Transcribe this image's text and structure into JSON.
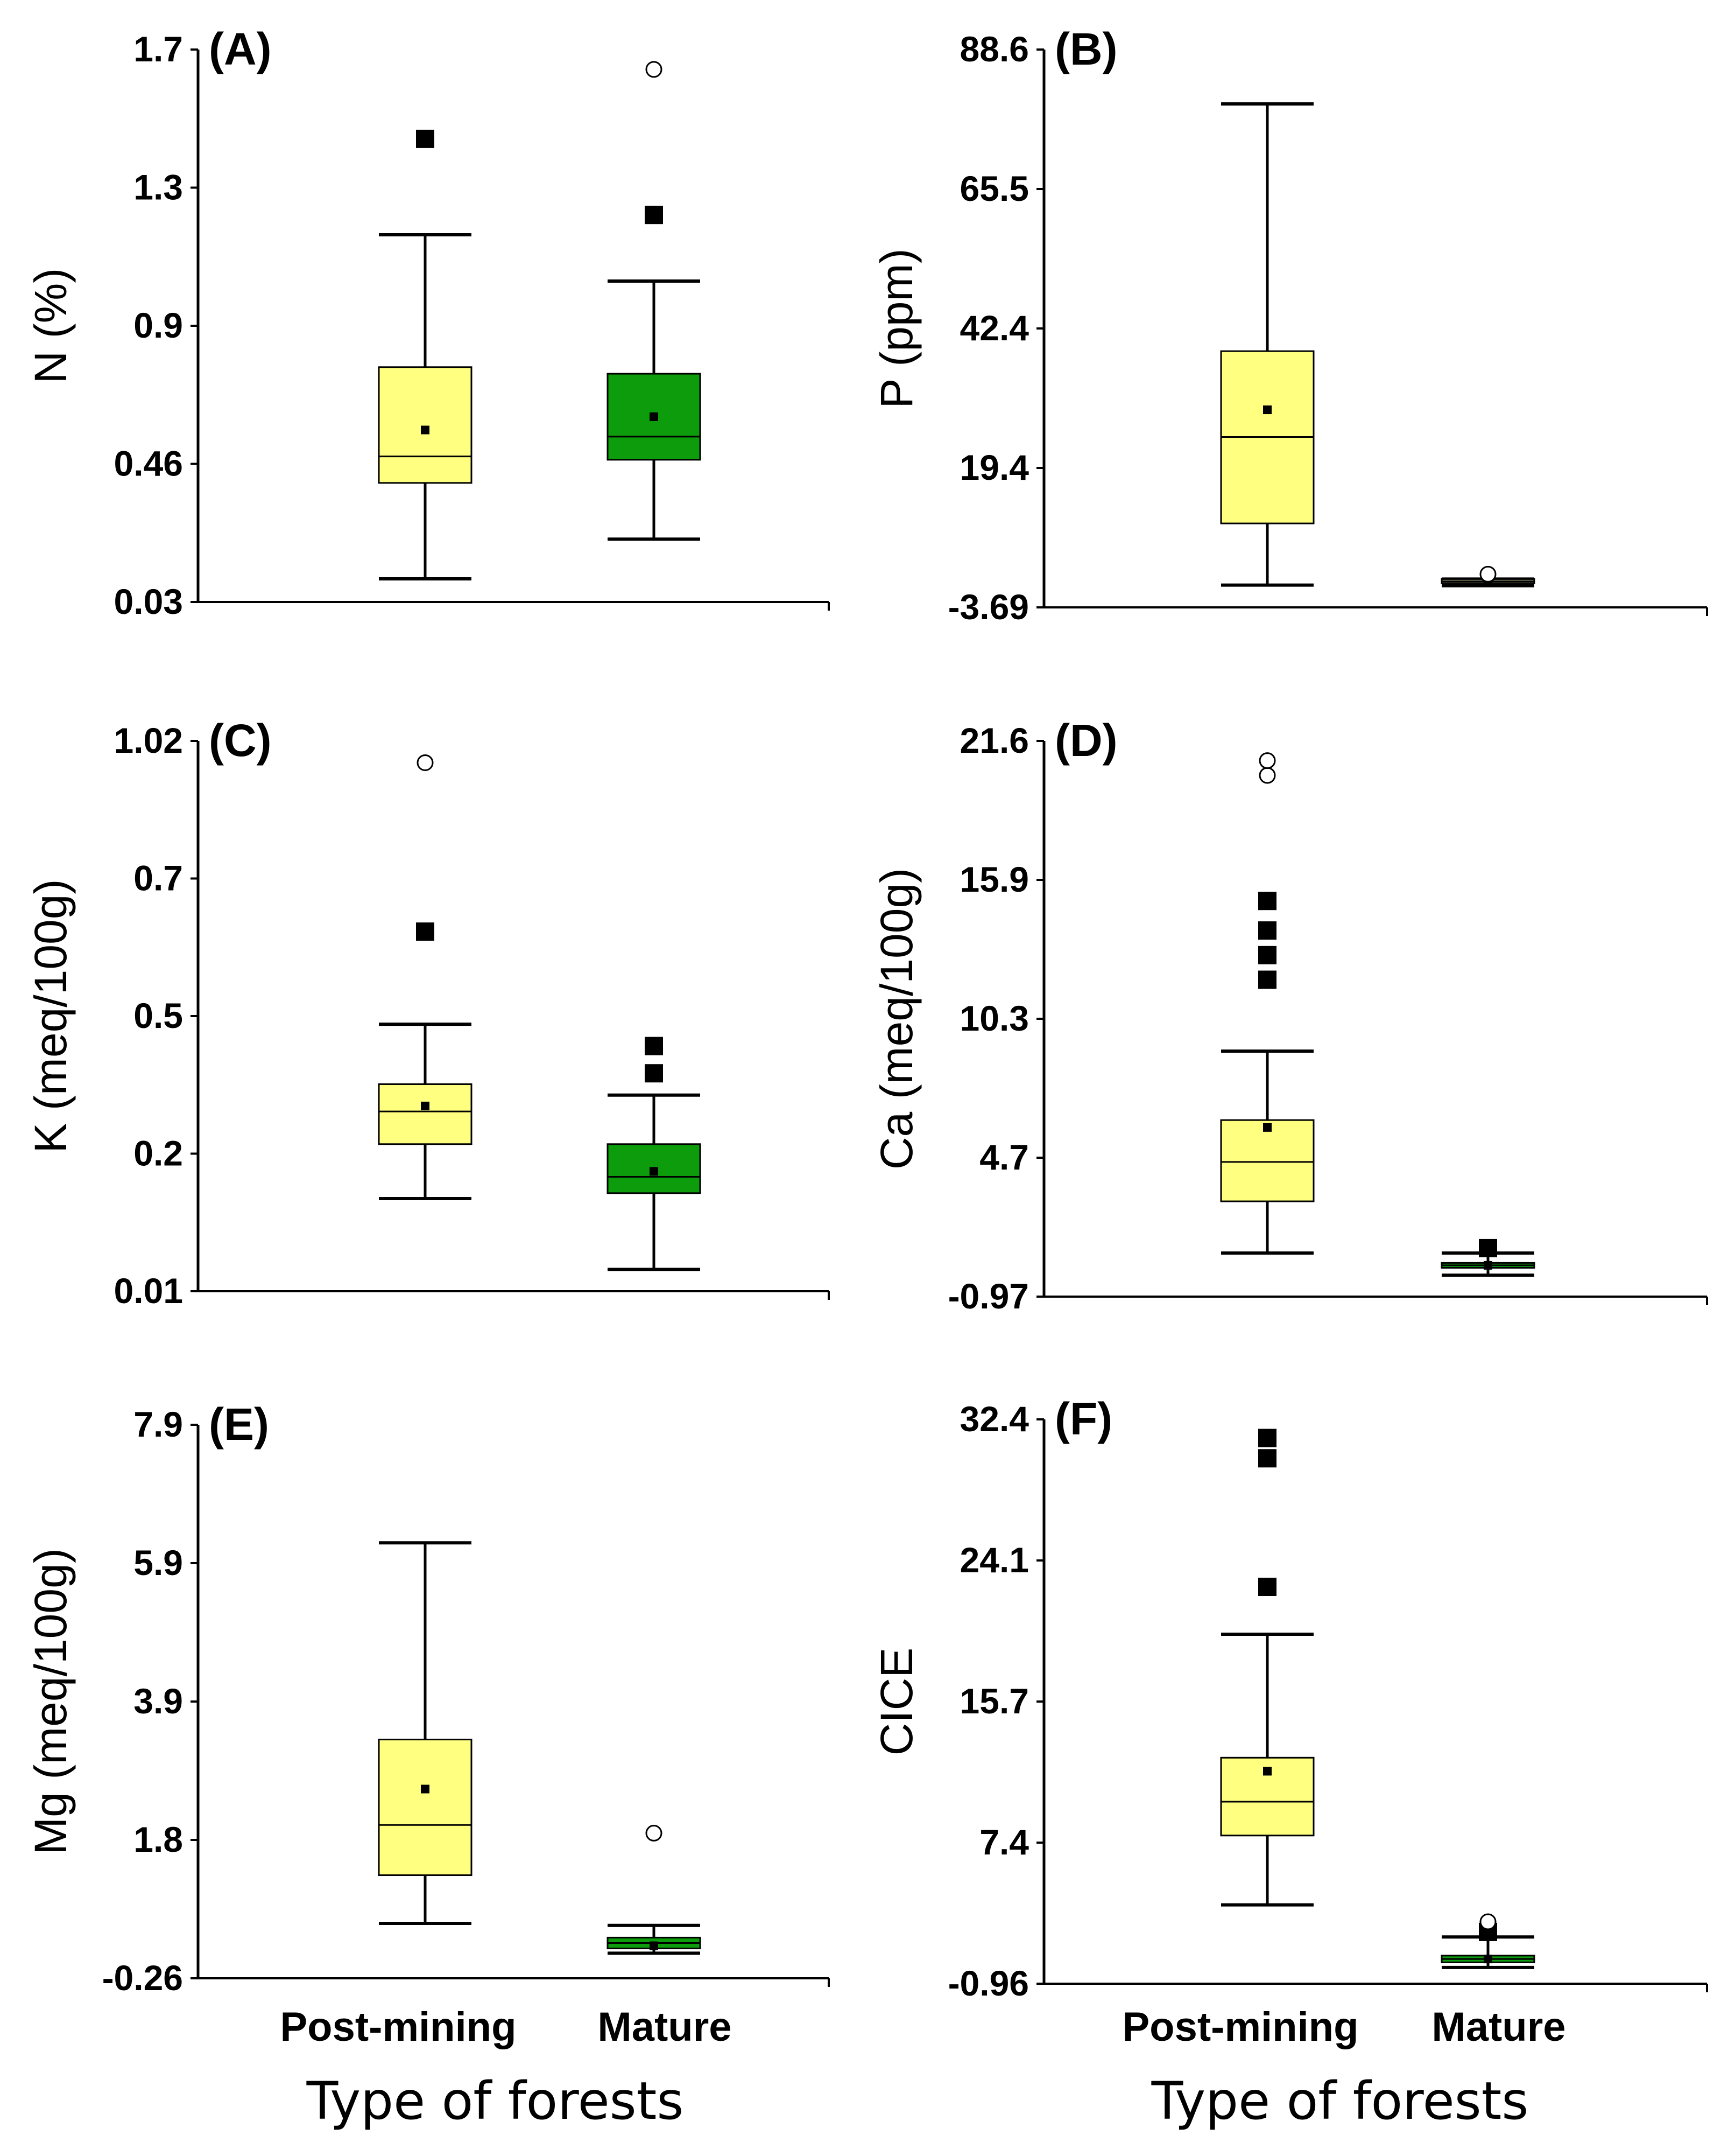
{
  "figure": {
    "categories": [
      "Post-mining",
      "Mature"
    ],
    "xlabel": "Type of forests",
    "colors": {
      "post_mining_fill": "#ffff80",
      "mature_fill": "#0c9c0c",
      "mature_fill_P": "#888866",
      "axis": "#000000"
    }
  },
  "chart_data": [
    {
      "panel": "(A)",
      "type": "box",
      "ylabel": "N (%)",
      "ylim": [
        0.03,
        1.7
      ],
      "yticks": [
        "1.7",
        "1.3",
        "0.9",
        "0.46",
        "0.03"
      ],
      "categories": [
        "Post-mining",
        "Mature"
      ],
      "boxes": [
        {
          "name": "Post-mining",
          "whisker_low": 0.1,
          "q1": 0.39,
          "median": 0.47,
          "q3": 0.74,
          "whisker_high": 1.14,
          "mean": 0.55,
          "outliers": [
            1.43
          ],
          "extremes": []
        },
        {
          "name": "Mature",
          "whisker_low": 0.22,
          "q1": 0.46,
          "median": 0.53,
          "q3": 0.72,
          "whisker_high": 1.0,
          "mean": 0.59,
          "outliers": [
            1.2
          ],
          "extremes": [
            1.64
          ]
        }
      ]
    },
    {
      "panel": "(B)",
      "type": "box",
      "ylabel": "P (ppm)",
      "ylim": [
        -3.69,
        88.6
      ],
      "yticks": [
        "88.6",
        "65.5",
        "42.4",
        "19.4",
        "-3.69"
      ],
      "categories": [
        "Post-mining",
        "Mature"
      ],
      "boxes": [
        {
          "name": "Post-mining",
          "whisker_low": 0.0,
          "q1": 10.2,
          "median": 24.5,
          "q3": 38.7,
          "whisker_high": 79.6,
          "mean": 29.0,
          "outliers": [],
          "extremes": []
        },
        {
          "name": "Mature",
          "whisker_low": -0.1,
          "q1": 0.3,
          "median": 0.6,
          "q3": 1.0,
          "whisker_high": 1.0,
          "mean": 0.5,
          "outliers": [],
          "extremes": [
            1.8
          ]
        }
      ]
    },
    {
      "panel": "(C)",
      "type": "box",
      "ylabel": "K (meq/100g)",
      "ylim": [
        0.01,
        1.02
      ],
      "yticks": [
        "1.02",
        "0.7",
        "0.5",
        "0.2",
        "0.01"
      ],
      "categories": [
        "Post-mining",
        "Mature"
      ],
      "boxes": [
        {
          "name": "Post-mining",
          "whisker_low": 0.18,
          "q1": 0.28,
          "median": 0.34,
          "q3": 0.39,
          "whisker_high": 0.5,
          "mean": 0.35,
          "outliers": [
            0.67
          ],
          "extremes": [
            0.98
          ]
        },
        {
          "name": "Mature",
          "whisker_low": 0.05,
          "q1": 0.19,
          "median": 0.22,
          "q3": 0.28,
          "whisker_high": 0.37,
          "mean": 0.23,
          "outliers": [
            0.41,
            0.46
          ],
          "extremes": []
        }
      ]
    },
    {
      "panel": "(D)",
      "type": "box",
      "ylabel": "Ca (meq/100g)",
      "ylim": [
        -0.97,
        21.6
      ],
      "yticks": [
        "21.6",
        "15.9",
        "10.3",
        "4.7",
        "-0.97"
      ],
      "categories": [
        "Post-mining",
        "Mature"
      ],
      "boxes": [
        {
          "name": "Post-mining",
          "whisker_low": 0.8,
          "q1": 2.9,
          "median": 4.5,
          "q3": 6.2,
          "whisker_high": 9.0,
          "mean": 5.9,
          "outliers": [
            11.9,
            12.9,
            13.9,
            15.1
          ],
          "extremes": [
            20.2,
            20.8
          ]
        },
        {
          "name": "Mature",
          "whisker_low": -0.1,
          "q1": 0.2,
          "median": 0.3,
          "q3": 0.4,
          "whisker_high": 0.8,
          "mean": 0.3,
          "outliers": [
            1.0
          ],
          "extremes": []
        }
      ]
    },
    {
      "panel": "(E)",
      "type": "box",
      "ylabel": "Mg (meq/100g)",
      "ylim": [
        -0.26,
        7.9
      ],
      "yticks": [
        "7.9",
        "5.9",
        "3.9",
        "1.8",
        "-0.26"
      ],
      "categories": [
        "Post-mining",
        "Mature"
      ],
      "boxes": [
        {
          "name": "Post-mining",
          "whisker_low": 0.55,
          "q1": 1.26,
          "median": 2.0,
          "q3": 3.26,
          "whisker_high": 6.16,
          "mean": 2.53,
          "outliers": [],
          "extremes": []
        },
        {
          "name": "Mature",
          "whisker_low": 0.11,
          "q1": 0.18,
          "median": 0.26,
          "q3": 0.34,
          "whisker_high": 0.52,
          "mean": 0.22,
          "outliers": [],
          "extremes": [
            1.88
          ]
        }
      ]
    },
    {
      "panel": "(F)",
      "type": "box",
      "ylabel": "CICE",
      "ylim": [
        -0.96,
        32.4
      ],
      "yticks": [
        "32.4",
        "24.1",
        "15.7",
        "7.4",
        "-0.96"
      ],
      "categories": [
        "Post-mining",
        "Mature"
      ],
      "boxes": [
        {
          "name": "Post-mining",
          "whisker_low": 3.7,
          "q1": 7.8,
          "median": 9.8,
          "q3": 12.4,
          "whisker_high": 19.7,
          "mean": 11.6,
          "outliers": [
            22.5,
            30.1,
            31.3
          ],
          "extremes": []
        },
        {
          "name": "Mature",
          "whisker_low": 0.0,
          "q1": 0.3,
          "median": 0.5,
          "q3": 0.7,
          "whisker_high": 1.8,
          "mean": 0.5,
          "outliers": [
            2.1
          ],
          "extremes": [
            2.7
          ]
        }
      ]
    }
  ]
}
